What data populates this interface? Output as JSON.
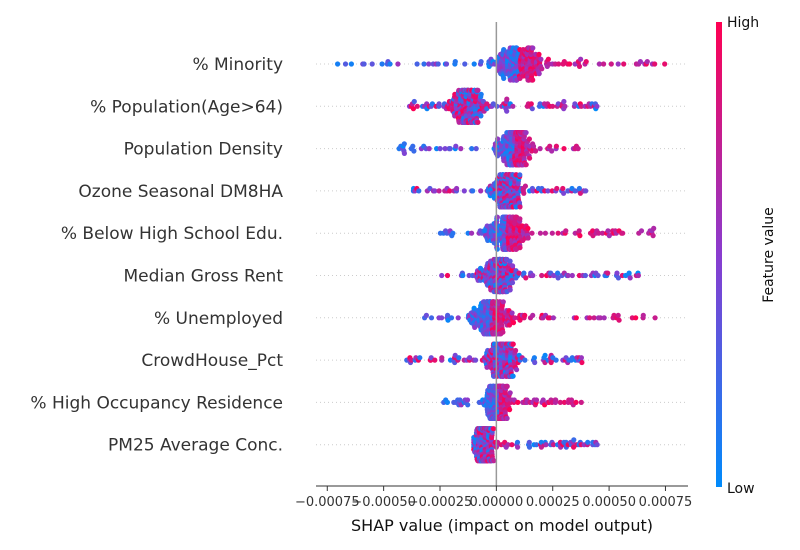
{
  "chart_data": {
    "type": "scatter",
    "subtype": "shap-beeswarm",
    "xlabel": "SHAP value (impact on model output)",
    "xlim": [
      -0.0008,
      0.00085
    ],
    "xticks": [
      -0.00075,
      -0.0005,
      -0.00025,
      0.0,
      0.00025,
      0.0005,
      0.00075
    ],
    "xtick_labels": [
      "−0.00075",
      "−0.00050",
      "−0.00025",
      "0.00000",
      "0.00025",
      "0.00050",
      "0.00075"
    ],
    "features": [
      "% Minority",
      "% Population(Age>64)",
      "Population Density",
      "Ozone Seasonal DM8HA",
      "% Below High School Edu.",
      "Median Gross Rent",
      "% Unemployed",
      "CrowdHouse_Pct",
      "% High Occupancy Residence",
      "PM25 Average Conc."
    ],
    "feature_ranges": [
      {
        "min": -0.00075,
        "max": 0.00075,
        "center": 0.0001
      },
      {
        "min": -0.0004,
        "max": 0.00045,
        "center": -0.00013
      },
      {
        "min": -0.00045,
        "max": 0.0004,
        "center": 8e-05
      },
      {
        "min": -0.00038,
        "max": 0.0004,
        "center": 5e-05
      },
      {
        "min": -0.00025,
        "max": 0.00072,
        "center": 5e-05
      },
      {
        "min": -0.00025,
        "max": 0.00065,
        "center": 1e-05
      },
      {
        "min": -0.00035,
        "max": 0.00075,
        "center": -2e-05
      },
      {
        "min": -0.0004,
        "max": 0.00038,
        "center": 3e-05
      },
      {
        "min": -0.00025,
        "max": 0.00038,
        "center": 1e-05
      },
      {
        "min": -0.0001,
        "max": 0.00045,
        "center": -5e-05
      }
    ],
    "colorbar": {
      "label": "Feature value",
      "high_label": "High",
      "low_label": "Low",
      "high_color": "#ff0052",
      "low_color": "#008bfb"
    },
    "vertical_line_at": 0.0
  }
}
